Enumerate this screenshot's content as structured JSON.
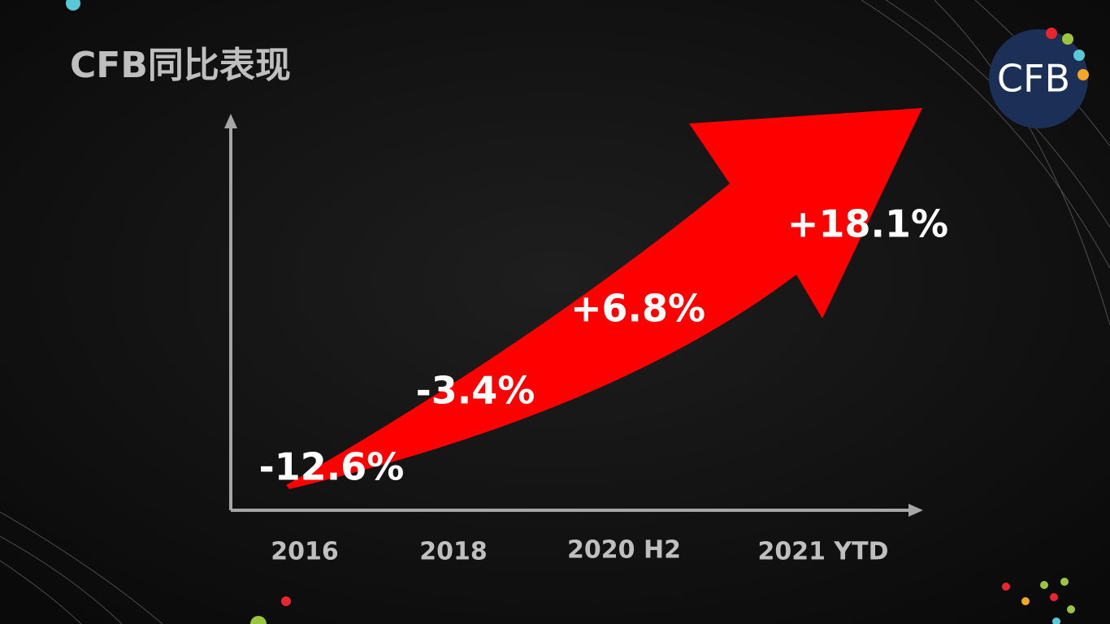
{
  "title": "CFB同比表现",
  "logo": "CFB",
  "periods": [
    {
      "label": "2016",
      "change": "-12.6%"
    },
    {
      "label": "2018",
      "change": "-3.4%"
    },
    {
      "label": "2020 H2",
      "change": "+6.8%"
    },
    {
      "label": "2021 YTD",
      "change": "+18.1%"
    }
  ]
}
